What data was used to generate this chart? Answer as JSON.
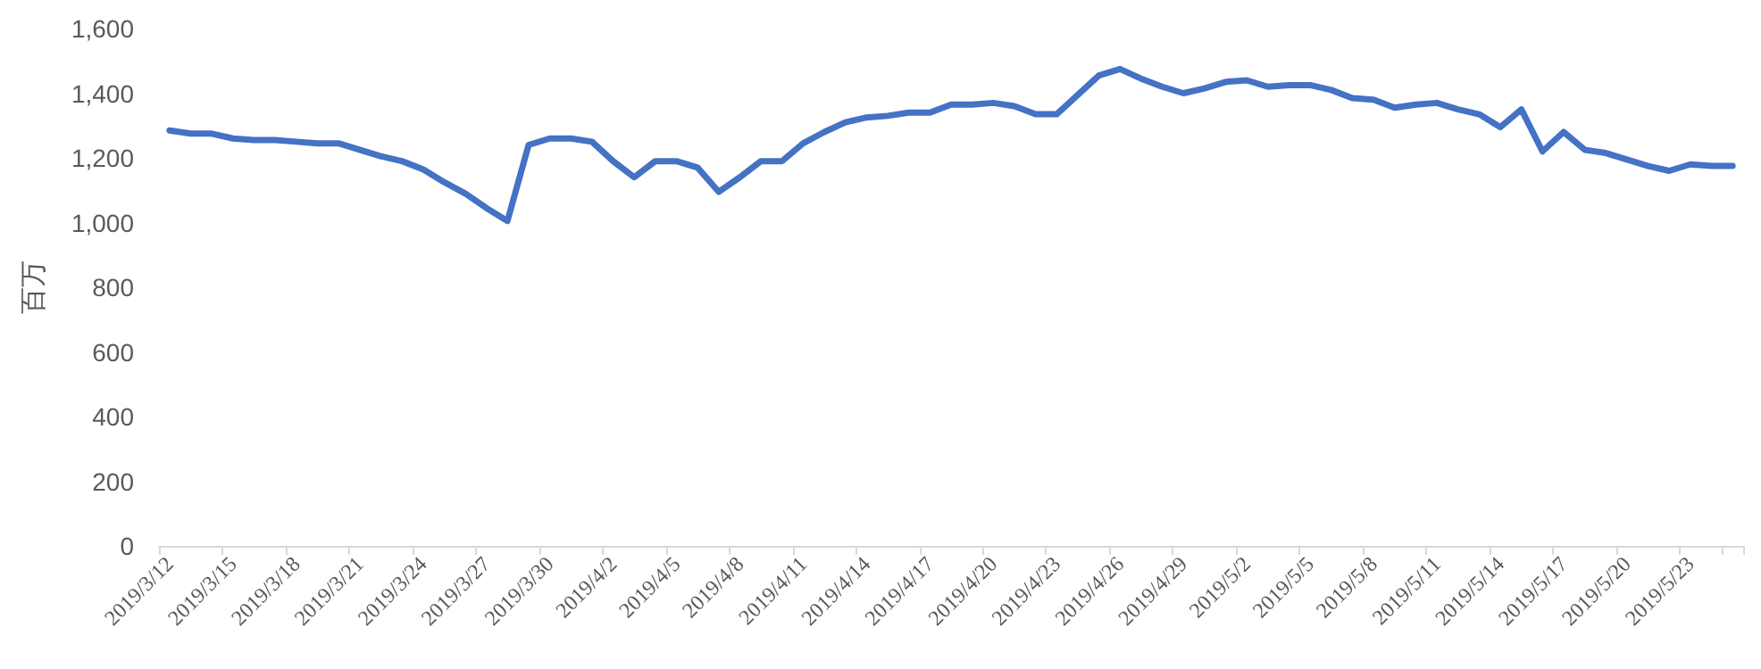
{
  "chart_data": {
    "type": "line",
    "ylabel": "百万",
    "categories": [
      "2019/3/12",
      null,
      null,
      "2019/3/15",
      null,
      null,
      "2019/3/18",
      null,
      null,
      "2019/3/21",
      null,
      null,
      "2019/3/24",
      null,
      null,
      "2019/3/27",
      null,
      null,
      "2019/3/30",
      null,
      null,
      "2019/4/2",
      null,
      null,
      "2019/4/5",
      null,
      null,
      "2019/4/8",
      null,
      null,
      "2019/4/11",
      null,
      null,
      "2019/4/14",
      null,
      null,
      "2019/4/17",
      null,
      null,
      "2019/4/20",
      null,
      null,
      "2019/4/23",
      null,
      null,
      "2019/4/26",
      null,
      null,
      "2019/4/29",
      null,
      null,
      "2019/5/2",
      null,
      null,
      "2019/5/5",
      null,
      null,
      "2019/5/8",
      null,
      null,
      "2019/5/11",
      null,
      null,
      "2019/5/14",
      null,
      null,
      "2019/5/17",
      null,
      null,
      "2019/5/20",
      null,
      null,
      "2019/5/23",
      null,
      null
    ],
    "series": [
      {
        "color": "#4472c4",
        "values": [
          1285,
          1275,
          1275,
          1260,
          1255,
          1255,
          1250,
          1245,
          1245,
          1225,
          1205,
          1190,
          1165,
          1125,
          1090,
          1045,
          1005,
          1240,
          1260,
          1260,
          1250,
          1190,
          1140,
          1190,
          1190,
          1170,
          1095,
          1140,
          1190,
          1190,
          1245,
          1280,
          1310,
          1325,
          1330,
          1340,
          1340,
          1365,
          1365,
          1370,
          1360,
          1335,
          1335,
          1395,
          1455,
          1475,
          1445,
          1420,
          1400,
          1415,
          1435,
          1440,
          1420,
          1425,
          1425,
          1410,
          1385,
          1380,
          1355,
          1365,
          1370,
          1350,
          1335,
          1295,
          1350,
          1220,
          1280,
          1225,
          1215,
          1195,
          1175,
          1160,
          1180,
          1175,
          1175
        ]
      }
    ],
    "ylim": [
      0,
      1600
    ],
    "yticks": [
      {
        "value": 0,
        "label": "0"
      },
      {
        "value": 200,
        "label": "200"
      },
      {
        "value": 400,
        "label": "400"
      },
      {
        "value": 600,
        "label": "600"
      },
      {
        "value": 800,
        "label": "800"
      },
      {
        "value": 1000,
        "label": "1,000"
      },
      {
        "value": 1200,
        "label": "1,200"
      },
      {
        "value": 1400,
        "label": "1,400"
      },
      {
        "value": 1600,
        "label": "1,600"
      }
    ],
    "marker": "none",
    "line_style": "solid"
  }
}
